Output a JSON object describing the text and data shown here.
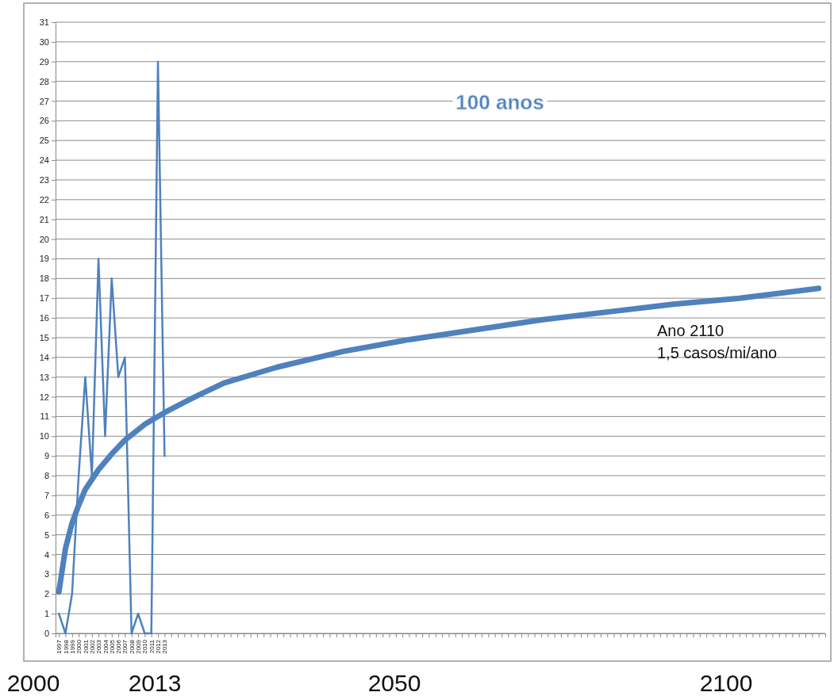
{
  "chart_data": {
    "type": "line",
    "title": "100 anos",
    "annotations": [
      "Ano 2110\n1,5 casos/mi/ano",
      "2000",
      "2013",
      "2050",
      "2100"
    ],
    "xlim": [
      1996.5,
      2113
    ],
    "xticks": [
      1997,
      1998,
      1999,
      2000,
      2001,
      2002,
      2003,
      2004,
      2005,
      2006,
      2007,
      2008,
      2009,
      2010,
      2011,
      2012,
      2013,
      {
        "value": 2014,
        "label": null
      },
      {
        "value": 2015,
        "label": null
      },
      {
        "value": 2016,
        "label": null
      },
      {
        "value": 2017,
        "label": null
      },
      {
        "value": 2018,
        "label": null
      },
      {
        "value": 2019,
        "label": null
      },
      {
        "value": 2020,
        "label": null
      },
      {
        "value": 2021,
        "label": null
      },
      {
        "value": 2022,
        "label": null
      },
      {
        "value": 2023,
        "label": null
      },
      {
        "value": 2024,
        "label": null
      },
      {
        "value": 2025,
        "label": null
      },
      {
        "value": 2026,
        "label": null
      },
      {
        "value": 2027,
        "label": null
      },
      {
        "value": 2028,
        "label": null
      },
      {
        "value": 2029,
        "label": null
      },
      {
        "value": 2030,
        "label": null
      },
      {
        "value": 2031,
        "label": null
      },
      {
        "value": 2032,
        "label": null
      },
      {
        "value": 2033,
        "label": null
      },
      {
        "value": 2034,
        "label": null
      },
      {
        "value": 2035,
        "label": null
      },
      {
        "value": 2036,
        "label": null
      },
      {
        "value": 2037,
        "label": null
      },
      {
        "value": 2038,
        "label": null
      },
      {
        "value": 2039,
        "label": null
      },
      {
        "value": 2040,
        "label": null
      },
      {
        "value": 2041,
        "label": null
      },
      {
        "value": 2042,
        "label": null
      },
      {
        "value": 2043,
        "label": null
      },
      {
        "value": 2044,
        "label": null
      },
      {
        "value": 2045,
        "label": null
      },
      {
        "value": 2046,
        "label": null
      },
      {
        "value": 2047,
        "label": null
      },
      {
        "value": 2048,
        "label": null
      },
      {
        "value": 2049,
        "label": null
      },
      {
        "value": 2050,
        "label": null
      },
      {
        "value": 2051,
        "label": null
      },
      {
        "value": 2052,
        "label": null
      },
      {
        "value": 2053,
        "label": null
      },
      {
        "value": 2054,
        "label": null
      },
      {
        "value": 2055,
        "label": null
      },
      {
        "value": 2056,
        "label": null
      },
      {
        "value": 2057,
        "label": null
      },
      {
        "value": 2058,
        "label": null
      },
      {
        "value": 2059,
        "label": null
      },
      {
        "value": 2060,
        "label": null
      },
      {
        "value": 2061,
        "label": null
      },
      {
        "value": 2062,
        "label": null
      },
      {
        "value": 2063,
        "label": null
      },
      {
        "value": 2064,
        "label": null
      },
      {
        "value": 2065,
        "label": null
      },
      {
        "value": 2066,
        "label": null
      },
      {
        "value": 2067,
        "label": null
      },
      {
        "value": 2068,
        "label": null
      },
      {
        "value": 2069,
        "label": null
      },
      {
        "value": 2070,
        "label": null
      },
      {
        "value": 2071,
        "label": null
      },
      {
        "value": 2072,
        "label": null
      },
      {
        "value": 2073,
        "label": null
      },
      {
        "value": 2074,
        "label": null
      },
      {
        "value": 2075,
        "label": null
      },
      {
        "value": 2076,
        "label": null
      },
      {
        "value": 2077,
        "label": null
      },
      {
        "value": 2078,
        "label": null
      },
      {
        "value": 2079,
        "label": null
      },
      {
        "value": 2080,
        "label": null
      },
      {
        "value": 2081,
        "label": null
      },
      {
        "value": 2082,
        "label": null
      },
      {
        "value": 2083,
        "label": null
      },
      {
        "value": 2084,
        "label": null
      },
      {
        "value": 2085,
        "label": null
      },
      {
        "value": 2086,
        "label": null
      },
      {
        "value": 2087,
        "label": null
      },
      {
        "value": 2088,
        "label": null
      },
      {
        "value": 2089,
        "label": null
      },
      {
        "value": 2090,
        "label": null
      },
      {
        "value": 2091,
        "label": null
      },
      {
        "value": 2092,
        "label": null
      },
      {
        "value": 2093,
        "label": null
      },
      {
        "value": 2094,
        "label": null
      },
      {
        "value": 2095,
        "label": null
      },
      {
        "value": 2096,
        "label": null
      },
      {
        "value": 2097,
        "label": null
      },
      {
        "value": 2098,
        "label": null
      },
      {
        "value": 2099,
        "label": null
      },
      {
        "value": 2100,
        "label": null
      },
      {
        "value": 2101,
        "label": null
      },
      {
        "value": 2102,
        "label": null
      },
      {
        "value": 2103,
        "label": null
      },
      {
        "value": 2104,
        "label": null
      },
      {
        "value": 2105,
        "label": null
      },
      {
        "value": 2106,
        "label": null
      },
      {
        "value": 2107,
        "label": null
      },
      {
        "value": 2108,
        "label": null
      },
      {
        "value": 2109,
        "label": null
      },
      {
        "value": 2110,
        "label": null
      },
      {
        "value": 2111,
        "label": null
      },
      {
        "value": 2112,
        "label": null
      }
    ],
    "ylim": [
      0,
      31
    ],
    "yticks": [
      0,
      1,
      2,
      3,
      4,
      5,
      6,
      7,
      8,
      9,
      10,
      11,
      12,
      13,
      14,
      15,
      16,
      17,
      18,
      19,
      20,
      21,
      22,
      23,
      24,
      25,
      26,
      27,
      28,
      29,
      30,
      31
    ],
    "grid": "y",
    "marker": "none",
    "line_style": "solid",
    "series": [
      {
        "color": "#4f81bd",
        "x": [
          1997,
          1998,
          1999,
          2000,
          2001,
          2002,
          2003,
          2004,
          2005,
          2006,
          2007,
          2008,
          2009,
          2010,
          2011,
          2012,
          2013
        ],
        "values": [
          1,
          0,
          2,
          8,
          13,
          8,
          19,
          10,
          18,
          13,
          14,
          0,
          1,
          0,
          0,
          29,
          9
        ]
      },
      {
        "color": "#4f81bd",
        "x": [
          1997,
          1998,
          1999,
          2000,
          2001,
          2003,
          2005,
          2007,
          2010,
          2013,
          2017,
          2022,
          2030,
          2040,
          2050,
          2060,
          2070,
          2080,
          2090,
          2100,
          2112
        ],
        "values": [
          2.1,
          4.3,
          5.6,
          6.5,
          7.3,
          8.3,
          9.1,
          9.8,
          10.6,
          11.2,
          11.9,
          12.7,
          13.5,
          14.3,
          14.9,
          15.4,
          15.9,
          16.3,
          16.7,
          17.0,
          17.5
        ]
      }
    ]
  }
}
